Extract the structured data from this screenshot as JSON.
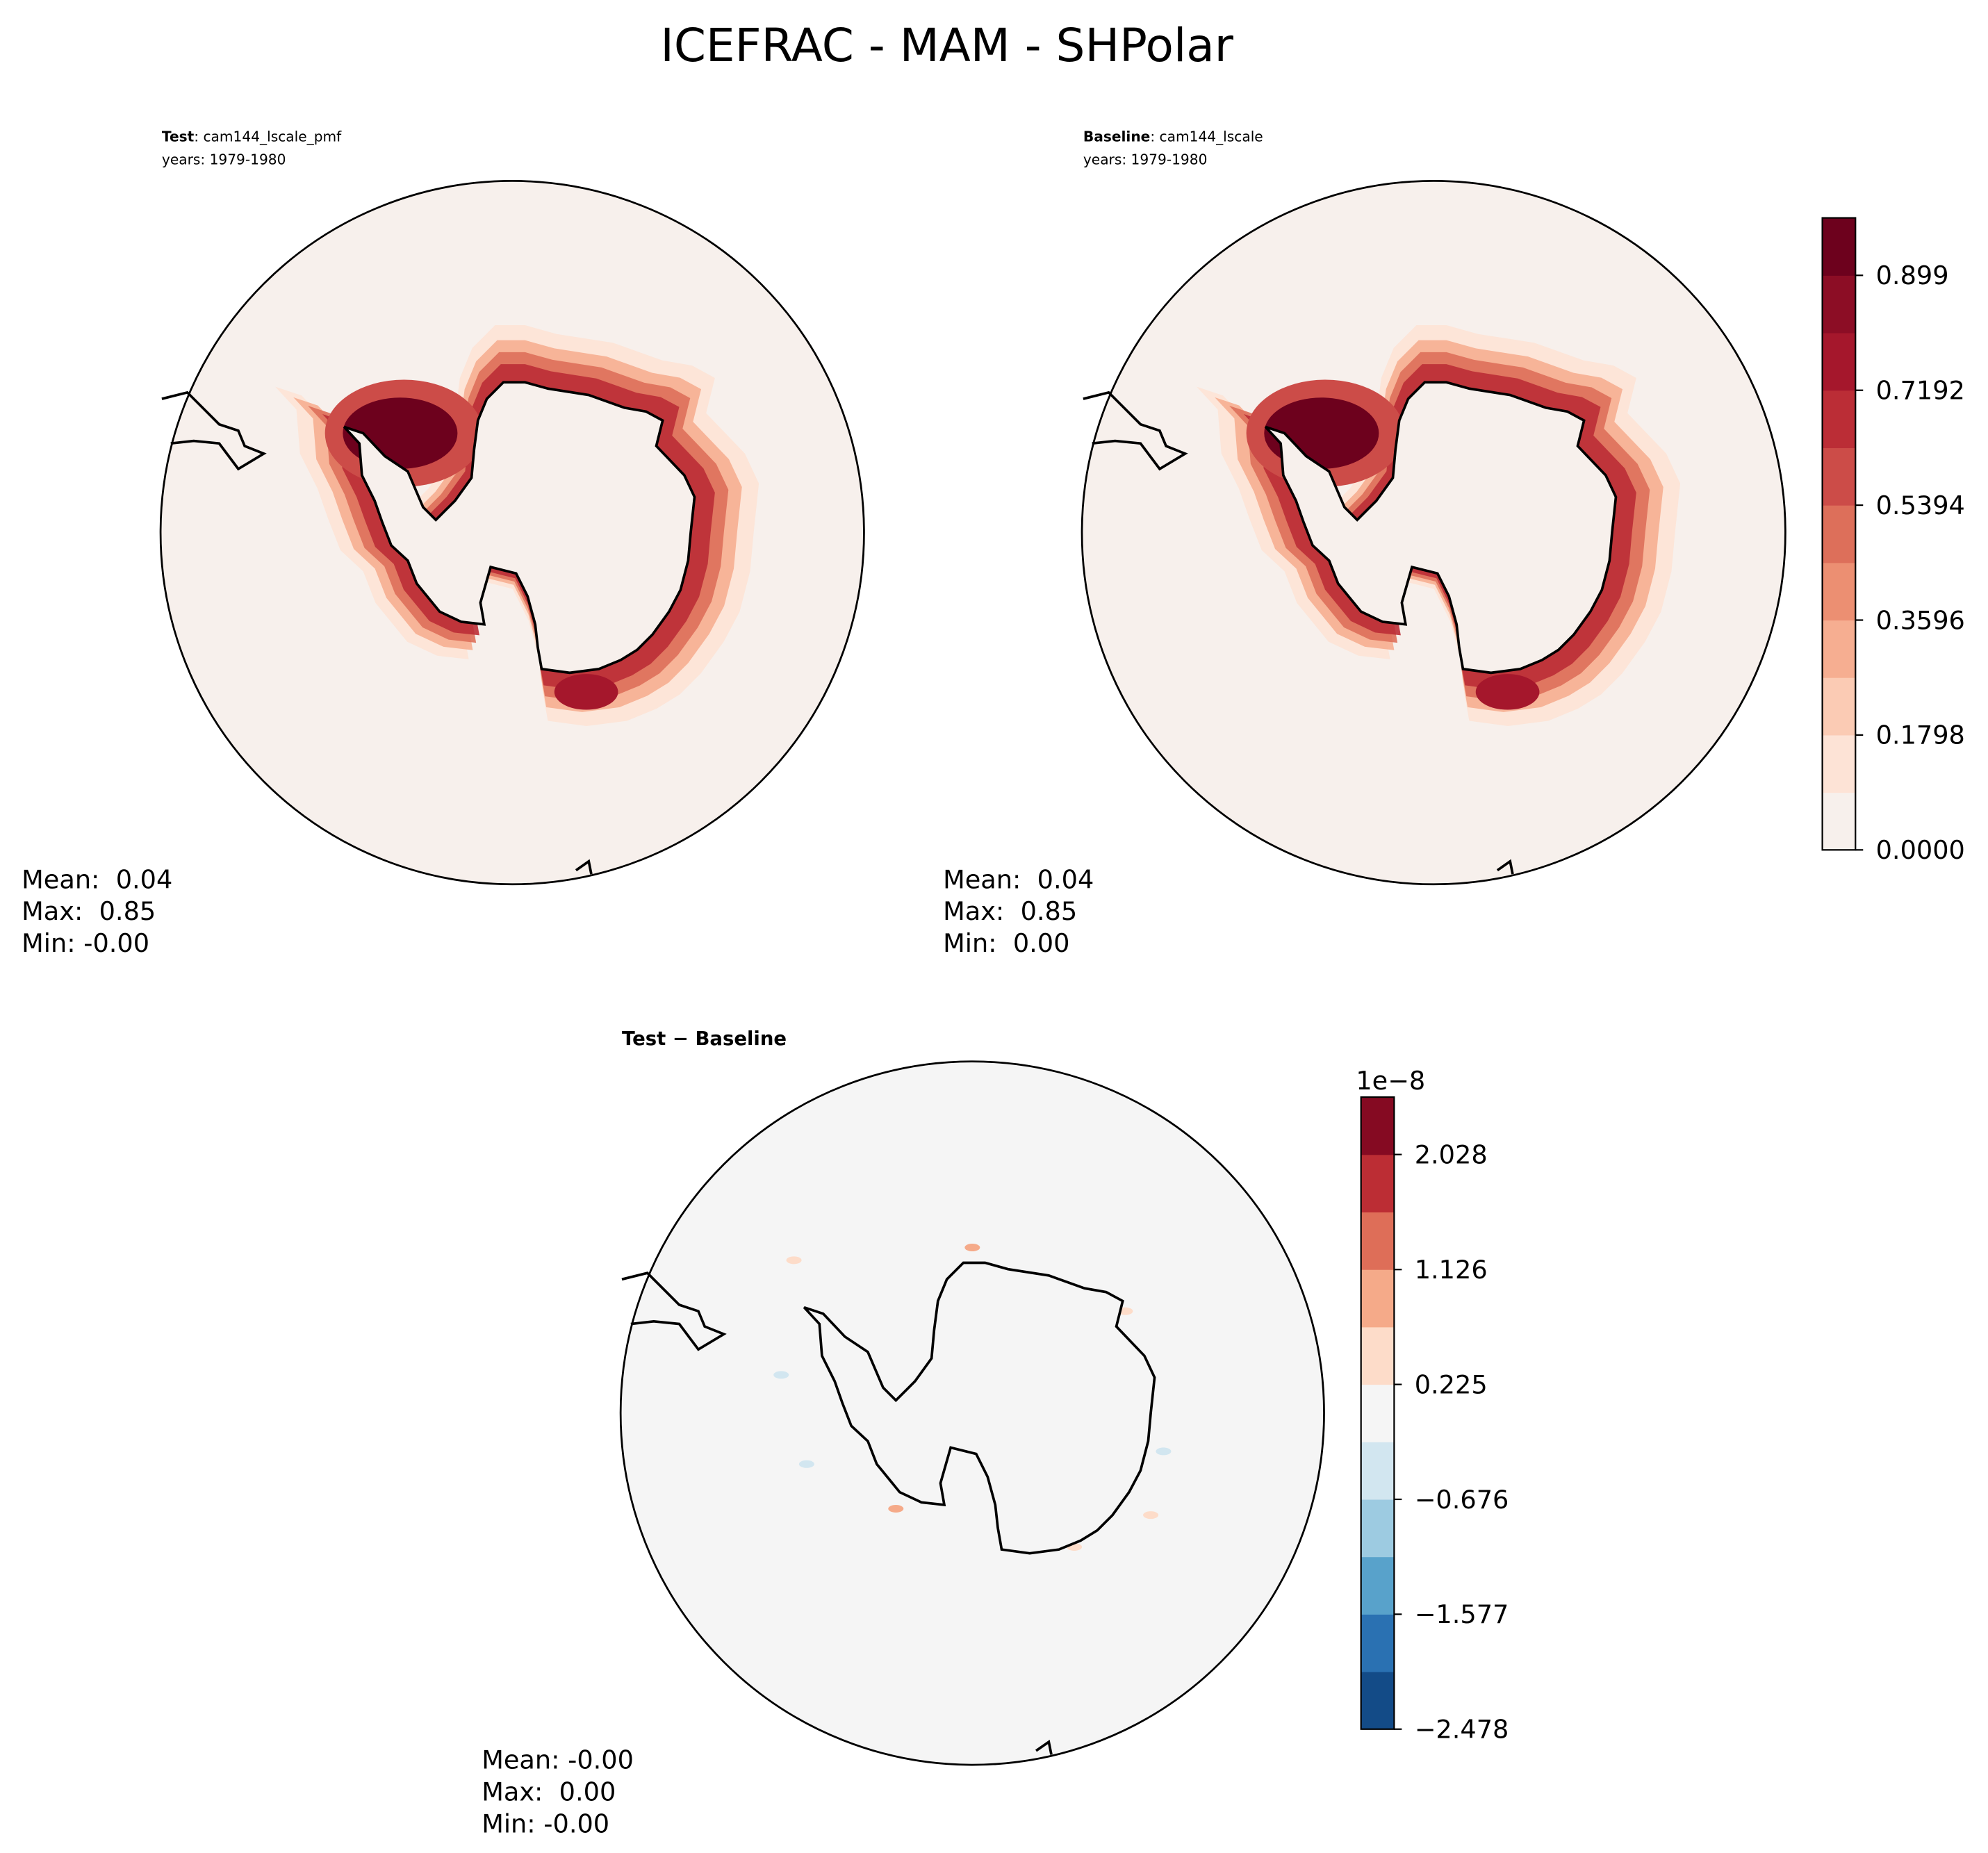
{
  "title": "ICEFRAC - MAM - SHPolar",
  "panels": [
    {
      "name": "Test",
      "case": ": cam144_lscale_pmf",
      "years": "years: 1979-1980",
      "stats": [
        "Mean:  0.04",
        "Max:  0.85",
        "Min: -0.00"
      ]
    },
    {
      "name": "Baseline",
      "case": ": cam144_lscale",
      "years": "years: 1979-1980",
      "stats": [
        "Mean:  0.04",
        "Max:  0.85",
        "Min:  0.00"
      ]
    },
    {
      "name": "Test − Baseline",
      "stats": [
        "Mean: -0.00",
        "Max:  0.00",
        "Min: -0.00"
      ]
    }
  ],
  "colorbars": [
    {
      "range": [
        0,
        0.9889
      ],
      "colors": [
        "#f7f0ec",
        "#fde3d6",
        "#fbcbb4",
        "#f6ae91",
        "#ec8f72",
        "#dd6f5a",
        "#cc4c48",
        "#bb2d36",
        "#a5172c",
        "#8c0d25",
        "#6d011d"
      ],
      "ticks": [
        {
          "value": 0,
          "label": "0.0000"
        },
        0.1798,
        0.3596,
        0.5394,
        0.7192,
        0.899
      ]
    },
    {
      "range": [
        -2.478,
        2.478
      ],
      "offset_label": "1e−8",
      "colors": [
        "#134b87",
        "#2a71b2",
        "#58a2cb",
        "#9dcbe1",
        "#d2e6f0",
        "#f5f5f5",
        "#fddcc9",
        "#f5aa89",
        "#de6e58",
        "#bc2d34",
        "#850a22"
      ],
      "ticks": [
        {
          "value": -2.478,
          "label": "−2.478"
        },
        {
          "value": -1.577,
          "label": "−1.577"
        },
        {
          "value": -0.676,
          "label": "−0.676"
        },
        0.225,
        1.126,
        2.028
      ]
    }
  ]
}
